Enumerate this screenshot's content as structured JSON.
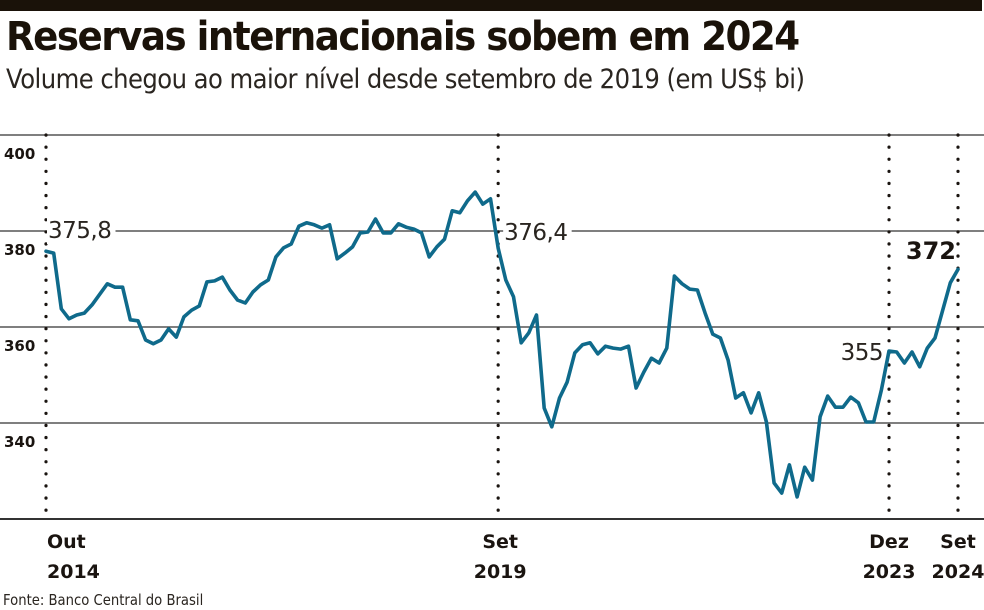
{
  "header": {
    "title": "Reservas internacionais sobem em 2024",
    "subtitle": "Volume chegou ao maior nível desde setembro de 2019 (em US$ bi)"
  },
  "footer": {
    "source": "Fonte: Banco Central do Brasil"
  },
  "colors": {
    "line": "#0f6a8b",
    "grid": "#333333",
    "topbar": "#1a1209"
  },
  "chart_data": {
    "type": "line",
    "title": "Reservas internacionais sobem em 2024",
    "subtitle": "Volume chegou ao maior nível desde setembro de 2019 (em US$ bi)",
    "xlabel": "",
    "ylabel": "US$ bi",
    "ylim": [
      320,
      400
    ],
    "yticks": [
      340,
      360,
      380,
      400
    ],
    "grid": true,
    "x_start": "Out 2014",
    "x_end": "Set 2024",
    "xticks": [
      {
        "index": 0,
        "month": "Out",
        "year": "2014"
      },
      {
        "index": 59,
        "month": "Set",
        "year": "2019"
      },
      {
        "index": 110,
        "month": "Dez",
        "year": "2023"
      },
      {
        "index": 119,
        "month": "Set",
        "year": "2024"
      }
    ],
    "series": [
      {
        "name": "Reservas internacionais",
        "values": [
          375.8,
          375.4,
          363.8,
          361.7,
          362.5,
          362.9,
          364.6,
          366.8,
          369.0,
          368.3,
          368.3,
          361.5,
          361.3,
          357.3,
          356.5,
          357.3,
          359.6,
          357.9,
          362.1,
          363.5,
          364.4,
          369.4,
          369.6,
          370.4,
          367.7,
          365.6,
          365.0,
          367.3,
          368.8,
          369.8,
          374.6,
          376.5,
          377.3,
          381.0,
          381.7,
          381.3,
          380.6,
          381.3,
          374.2,
          375.4,
          376.7,
          379.6,
          379.8,
          382.5,
          379.6,
          379.6,
          381.5,
          380.8,
          380.4,
          379.6,
          374.6,
          376.7,
          378.3,
          384.2,
          383.8,
          386.3,
          388.1,
          385.6,
          386.7,
          376.4,
          369.8,
          366.3,
          356.7,
          358.8,
          362.5,
          343.1,
          339.2,
          345.2,
          348.5,
          354.6,
          356.3,
          356.7,
          354.4,
          356.0,
          355.6,
          355.4,
          356.0,
          347.3,
          350.6,
          353.5,
          352.5,
          355.6,
          370.6,
          369.0,
          367.9,
          367.7,
          362.9,
          358.5,
          357.7,
          353.1,
          345.2,
          346.3,
          342.1,
          346.3,
          340.2,
          327.5,
          325.4,
          331.3,
          324.6,
          330.8,
          328.1,
          341.3,
          345.6,
          343.3,
          343.3,
          345.4,
          344.2,
          340.2,
          340.2,
          346.9,
          355.0,
          354.8,
          352.5,
          354.8,
          351.7,
          355.6,
          357.7,
          363.5,
          369.2,
          372.0
        ]
      }
    ],
    "annotations": [
      {
        "index": 0,
        "label": "375,8",
        "bold": false
      },
      {
        "index": 59,
        "label": "376,4",
        "bold": false
      },
      {
        "index": 110,
        "label": "355",
        "bold": false
      },
      {
        "index": 119,
        "label": "372",
        "bold": true
      }
    ]
  }
}
